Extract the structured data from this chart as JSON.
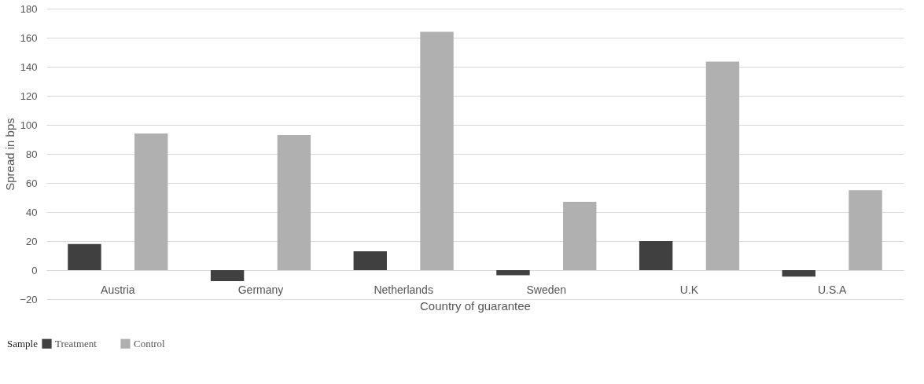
{
  "chart_data": {
    "type": "bar",
    "xlabel": "Country of guarantee",
    "ylabel": "Spread in bps",
    "legend_title": "Sample",
    "categories": [
      "Austria",
      "Germany",
      "Netherlands",
      "Sweden",
      "U.K",
      "U.S.A"
    ],
    "series": [
      {
        "name": "Treatment",
        "color": "#404040",
        "values": [
          18,
          -7.5,
          13,
          -3.5,
          20,
          -4.5
        ]
      },
      {
        "name": "Control",
        "color": "#b0b0b0",
        "values": [
          94,
          93,
          164,
          47,
          143.5,
          55
        ]
      }
    ],
    "ylim": [
      -20,
      180
    ],
    "yticks": [
      -20,
      0,
      20,
      40,
      60,
      80,
      100,
      120,
      140,
      160,
      180
    ],
    "grid": "y",
    "legend": "bottom left"
  }
}
